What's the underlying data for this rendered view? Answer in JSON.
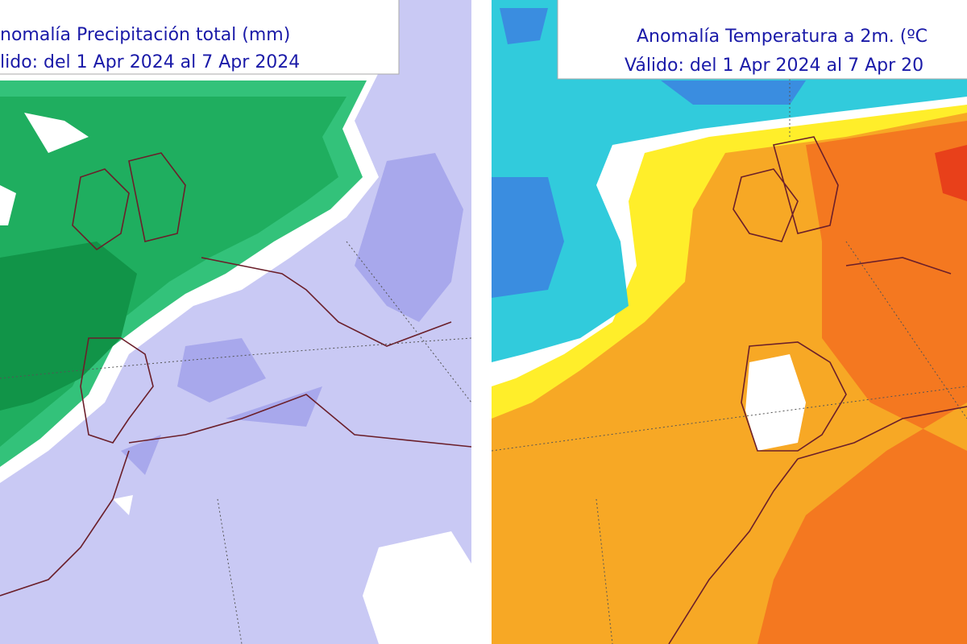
{
  "panels": [
    {
      "title": "nomalía Precipitación total (mm)",
      "subtitle": "lido: del 1 Apr 2024 al 7 Apr 2024"
    },
    {
      "title": "Anomalía Temperatura a 2m. (ºC",
      "subtitle": "Válido: del 1 Apr 2024 al 7 Apr 20"
    }
  ]
}
